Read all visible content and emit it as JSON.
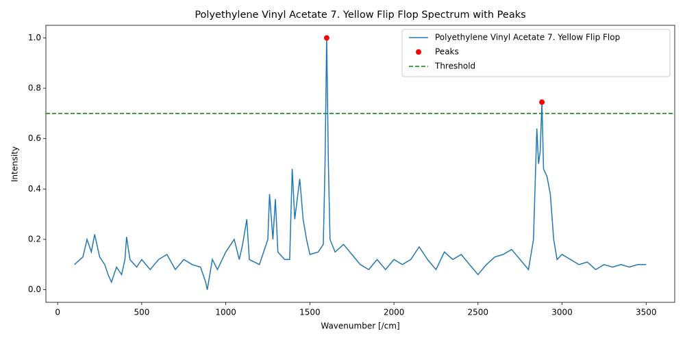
{
  "chart_data": {
    "type": "line",
    "title": "Polyethylene Vinyl Acetate 7. Yellow Flip Flop Spectrum with Peaks",
    "x_label": "Wavenumber [/cm]",
    "y_label": "Intensity",
    "xlim": [
      -70,
      3670
    ],
    "ylim": [
      -0.05,
      1.05
    ],
    "xticks": [
      0,
      500,
      1000,
      1500,
      2000,
      2500,
      3000,
      3500
    ],
    "yticks": [
      {
        "value": 0,
        "label": "0.0"
      },
      0.2,
      0.4,
      0.6,
      0.8,
      {
        "value": 1,
        "label": "1.0"
      }
    ],
    "legend": "upper right",
    "series": [
      {
        "name": "Polyethylene Vinyl Acetate 7. Yellow Flip Flop",
        "color": "#1f77b4",
        "kind": "line",
        "x": [
          100,
          150,
          175,
          200,
          220,
          250,
          280,
          300,
          320,
          350,
          380,
          400,
          410,
          430,
          470,
          500,
          550,
          600,
          650,
          700,
          750,
          800,
          850,
          880,
          890,
          920,
          950,
          1000,
          1050,
          1080,
          1100,
          1125,
          1140,
          1200,
          1250,
          1260,
          1280,
          1295,
          1310,
          1350,
          1380,
          1395,
          1410,
          1440,
          1460,
          1480,
          1500,
          1550,
          1580,
          1590,
          1600,
          1610,
          1620,
          1650,
          1700,
          1750,
          1800,
          1850,
          1900,
          1950,
          2000,
          2050,
          2100,
          2150,
          2200,
          2250,
          2300,
          2350,
          2400,
          2450,
          2500,
          2550,
          2600,
          2650,
          2700,
          2750,
          2800,
          2830,
          2850,
          2860,
          2870,
          2880,
          2890,
          2910,
          2930,
          2950,
          2970,
          3000,
          3050,
          3100,
          3150,
          3200,
          3250,
          3300,
          3350,
          3400,
          3450,
          3500
        ],
        "values": [
          0.1,
          0.13,
          0.2,
          0.15,
          0.22,
          0.13,
          0.1,
          0.06,
          0.03,
          0.09,
          0.06,
          0.12,
          0.21,
          0.12,
          0.09,
          0.12,
          0.08,
          0.12,
          0.14,
          0.08,
          0.12,
          0.1,
          0.09,
          0.03,
          0.0,
          0.12,
          0.08,
          0.15,
          0.2,
          0.12,
          0.18,
          0.28,
          0.12,
          0.1,
          0.2,
          0.38,
          0.2,
          0.36,
          0.15,
          0.12,
          0.12,
          0.48,
          0.28,
          0.44,
          0.28,
          0.2,
          0.14,
          0.15,
          0.18,
          0.5,
          1.0,
          0.5,
          0.2,
          0.15,
          0.18,
          0.14,
          0.1,
          0.08,
          0.12,
          0.08,
          0.12,
          0.1,
          0.12,
          0.17,
          0.12,
          0.08,
          0.15,
          0.12,
          0.14,
          0.1,
          0.06,
          0.1,
          0.13,
          0.14,
          0.16,
          0.12,
          0.08,
          0.2,
          0.64,
          0.5,
          0.55,
          0.745,
          0.48,
          0.45,
          0.38,
          0.2,
          0.12,
          0.14,
          0.12,
          0.1,
          0.11,
          0.08,
          0.1,
          0.09,
          0.1,
          0.09,
          0.1,
          0.1
        ]
      },
      {
        "name": "Peaks",
        "color": "red",
        "kind": "scatter",
        "x": [
          1600,
          2880
        ],
        "values": [
          1.0,
          0.745
        ]
      }
    ],
    "threshold": {
      "name": "Threshold",
      "value": 0.7,
      "color": "green"
    }
  }
}
